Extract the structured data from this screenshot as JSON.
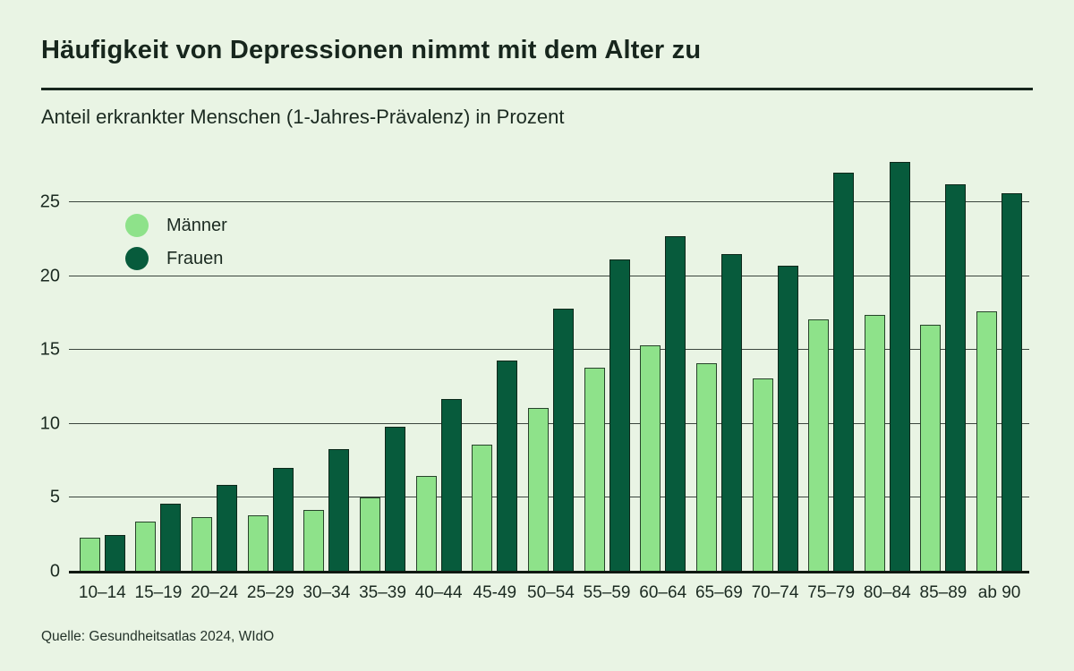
{
  "header": {
    "title": "Häufigkeit von Depressionen nimmt mit dem Alter zu",
    "subtitle": "Anteil erkrankter Menschen (1-Jahres-Prävalenz) in Prozent"
  },
  "source": "Quelle: Gesundheitsatlas 2024, WIdO",
  "colors": {
    "background": "#e9f4e4",
    "maenner": "#8ee28a",
    "frauen": "#075b3c",
    "text": "#1b2a21",
    "gridline": "#3a453d",
    "baseline": "#101911"
  },
  "chart_data": {
    "type": "bar",
    "title": "Häufigkeit von Depressionen nimmt mit dem Alter zu",
    "subtitle": "Anteil erkrankter Menschen (1-Jahres-Prävalenz) in Prozent",
    "xlabel": "",
    "ylabel": "Prozent",
    "ylim": [
      0,
      28
    ],
    "y_ticks": [
      0,
      5,
      10,
      15,
      20,
      25
    ],
    "grid": true,
    "legend_position": "top-left",
    "categories": [
      "10–14",
      "15–19",
      "20–24",
      "25–29",
      "30–34",
      "35–39",
      "40–44",
      "45-49",
      "50–54",
      "55–59",
      "60–64",
      "65–69",
      "70–74",
      "75–79",
      "80–84",
      "85–89",
      "ab 90"
    ],
    "series": [
      {
        "name": "Männer",
        "color": "#8ee28a",
        "values": [
          2.3,
          3.4,
          3.7,
          3.8,
          4.2,
          5.0,
          6.5,
          8.6,
          11.1,
          13.8,
          15.3,
          14.1,
          13.1,
          17.1,
          17.4,
          16.7,
          17.6
        ]
      },
      {
        "name": "Frauen",
        "color": "#075b3c",
        "values": [
          2.5,
          4.6,
          5.9,
          7.0,
          8.3,
          9.8,
          11.7,
          14.3,
          17.8,
          21.1,
          22.7,
          21.5,
          20.7,
          27.0,
          27.7,
          26.2,
          25.6
        ]
      }
    ]
  }
}
